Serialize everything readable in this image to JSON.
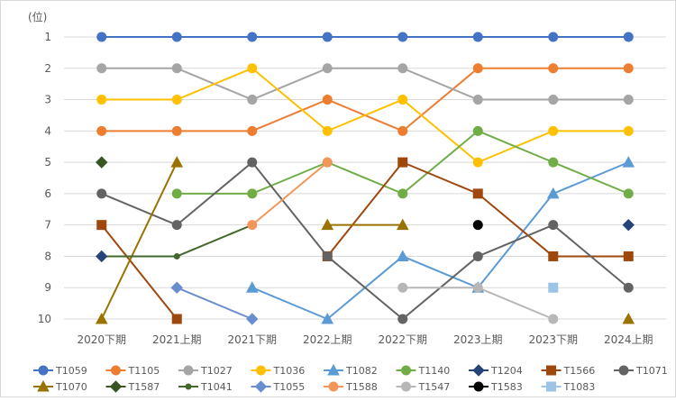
{
  "chart_data": {
    "type": "line",
    "y_unit_label": "(位)",
    "y_axis_inverted": true,
    "ylim": [
      1,
      10
    ],
    "y_ticks": [
      1,
      2,
      3,
      4,
      5,
      6,
      7,
      8,
      9,
      10
    ],
    "grid": "horizontal",
    "legend_position": "bottom",
    "categories": [
      "2020下期",
      "2021上期",
      "2021下期",
      "2022上期",
      "2022下期",
      "2023上期",
      "2023下期",
      "2024上期"
    ],
    "series": [
      {
        "name": "T1059",
        "color": "#4472C4",
        "marker": "circle",
        "values": [
          1,
          1,
          1,
          1,
          1,
          1,
          1,
          1
        ]
      },
      {
        "name": "T1105",
        "color": "#ED7D31",
        "marker": "circle",
        "values": [
          4,
          4,
          4,
          3,
          4,
          2,
          2,
          2
        ]
      },
      {
        "name": "T1027",
        "color": "#A5A5A5",
        "marker": "circle",
        "values": [
          2,
          2,
          3,
          2,
          2,
          3,
          3,
          3
        ]
      },
      {
        "name": "T1036",
        "color": "#FFC000",
        "marker": "circle",
        "values": [
          3,
          3,
          2,
          4,
          3,
          5,
          4,
          4
        ]
      },
      {
        "name": "T1082",
        "color": "#5B9BD5",
        "marker": "triangle",
        "values": [
          null,
          null,
          9,
          10,
          8,
          9,
          6,
          5
        ]
      },
      {
        "name": "T1140",
        "color": "#70AD47",
        "marker": "circle",
        "values": [
          null,
          6,
          6,
          5,
          6,
          4,
          5,
          6
        ]
      },
      {
        "name": "T1204",
        "color": "#264478",
        "marker": "diamond",
        "values": [
          null,
          null,
          null,
          null,
          null,
          null,
          null,
          7
        ]
      },
      {
        "name": "T1566",
        "color": "#9E480E",
        "marker": "square",
        "values": [
          7,
          10,
          null,
          8,
          5,
          6,
          8,
          8
        ]
      },
      {
        "name": "T1071",
        "color": "#636363",
        "marker": "circle",
        "values": [
          6,
          7,
          5,
          8,
          10,
          8,
          7,
          9
        ]
      },
      {
        "name": "T1070",
        "color": "#997300",
        "marker": "triangle",
        "values": [
          10,
          5,
          null,
          7,
          7,
          null,
          null,
          10
        ]
      },
      {
        "name": "T1587",
        "color": "#375623",
        "marker": "diamond",
        "values": [
          5,
          null,
          null,
          null,
          null,
          null,
          null,
          null
        ]
      },
      {
        "name": "T1041",
        "color": "#43682B",
        "marker": "circle-small",
        "values": [
          8,
          8,
          7,
          null,
          null,
          null,
          null,
          null
        ]
      },
      {
        "name": "T1055",
        "color": "#698ED0",
        "marker": "diamond",
        "values": [
          null,
          9,
          10,
          null,
          null,
          null,
          null,
          null
        ]
      },
      {
        "name": "T1588",
        "color": "#F1975A",
        "marker": "circle",
        "values": [
          null,
          null,
          7,
          5,
          null,
          null,
          null,
          null
        ]
      },
      {
        "name": "T1547",
        "color": "#B7B7B7",
        "marker": "circle",
        "values": [
          null,
          null,
          null,
          null,
          9,
          9,
          10,
          null
        ]
      },
      {
        "name": "T1583",
        "color": "#000000",
        "marker": "circle",
        "values": [
          null,
          null,
          null,
          null,
          null,
          7,
          null,
          null
        ]
      },
      {
        "name": "T1083",
        "color": "#9DC3E6",
        "marker": "square",
        "values": [
          null,
          null,
          null,
          null,
          null,
          null,
          9,
          null
        ]
      },
      {
        "name": "T1587-diamond-8",
        "color": "#264478",
        "marker": "diamond",
        "values": [
          8,
          null,
          null,
          null,
          null,
          null,
          null,
          null
        ],
        "legend": false
      }
    ]
  }
}
